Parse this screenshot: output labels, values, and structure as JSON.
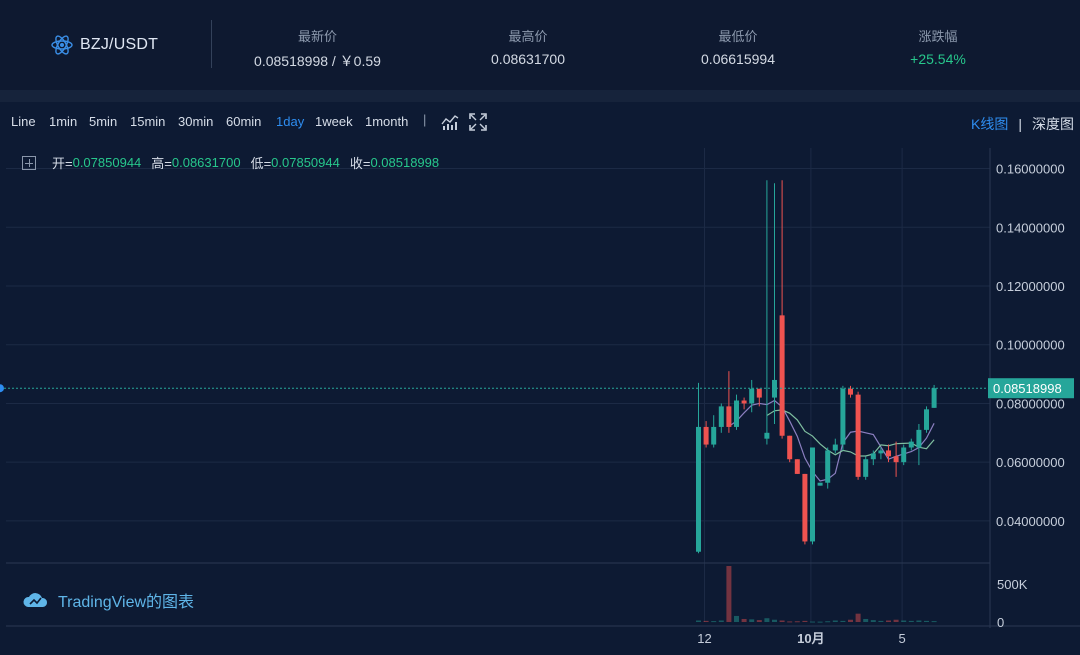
{
  "ticker": {
    "pair": "BZJ/USDT",
    "pair_icon": "atom-icon",
    "stats": [
      {
        "label": "最新价",
        "value": "0.08518998 / ￥0.59"
      },
      {
        "label": "最高价",
        "value": "0.08631700"
      },
      {
        "label": "最低价",
        "value": "0.06615994"
      },
      {
        "label": "涨跌幅",
        "value": "+25.54%"
      }
    ]
  },
  "toolbar": {
    "timeframes": [
      "Line",
      "1min",
      "5min",
      "15min",
      "30min",
      "60min",
      "1day",
      "1week",
      "1month"
    ],
    "active": "1day",
    "separator": "|",
    "indicator_icon": "indicators-icon",
    "fullscreen_icon": "fullscreen-icon",
    "kline_tab": "K线图",
    "tab_separator": "|",
    "depth_tab": "深度图"
  },
  "legend": {
    "open_label": "开=",
    "open": "0.07850944",
    "high_label": "高=",
    "high": "0.08631700",
    "low_label": "低=",
    "low": "0.07850944",
    "close_label": "收=",
    "close": "0.08518998"
  },
  "watermark": "TradingView的图表",
  "colors": {
    "up": "#26a69a",
    "down": "#ef5350",
    "accent": "#2e8df0",
    "bg": "#0d1a33"
  },
  "chart_data": {
    "type": "candlestick",
    "price_axis": [
      "0.16000000",
      "0.14000000",
      "0.12000000",
      "0.10000000",
      "0.08000000",
      "0.06000000",
      "0.04000000"
    ],
    "price_ticks": [
      0.16,
      0.14,
      0.12,
      0.1,
      0.08,
      0.06,
      0.04
    ],
    "ylim": [
      0.026,
      0.167
    ],
    "last_price": 0.08518998,
    "last_price_label": "0.08518998",
    "volume_axis": [
      "500K",
      "0"
    ],
    "volume_ticks": [
      500000,
      0
    ],
    "volume_max": 740000,
    "time_axis": [
      {
        "label": "12",
        "index": 0
      },
      {
        "label": "10月",
        "index": 14
      },
      {
        "label": "5",
        "index": 26
      }
    ],
    "candles": [
      {
        "o": 0.0295,
        "h": 0.087,
        "l": 0.029,
        "c": 0.072,
        "v": 20000
      },
      {
        "o": 0.072,
        "h": 0.074,
        "l": 0.065,
        "c": 0.066,
        "v": 15000
      },
      {
        "o": 0.066,
        "h": 0.076,
        "l": 0.065,
        "c": 0.072,
        "v": 12000
      },
      {
        "o": 0.072,
        "h": 0.08,
        "l": 0.07,
        "c": 0.079,
        "v": 20000
      },
      {
        "o": 0.079,
        "h": 0.091,
        "l": 0.07,
        "c": 0.072,
        "v": 740000
      },
      {
        "o": 0.072,
        "h": 0.083,
        "l": 0.071,
        "c": 0.081,
        "v": 80000
      },
      {
        "o": 0.081,
        "h": 0.082,
        "l": 0.078,
        "c": 0.08,
        "v": 40000
      },
      {
        "o": 0.08,
        "h": 0.088,
        "l": 0.077,
        "c": 0.085,
        "v": 35000
      },
      {
        "o": 0.085,
        "h": 0.085,
        "l": 0.079,
        "c": 0.082,
        "v": 25000
      },
      {
        "o": 0.068,
        "h": 0.156,
        "l": 0.066,
        "c": 0.07,
        "v": 50000
      },
      {
        "o": 0.082,
        "h": 0.155,
        "l": 0.073,
        "c": 0.088,
        "v": 30000
      },
      {
        "o": 0.11,
        "h": 0.156,
        "l": 0.068,
        "c": 0.069,
        "v": 20000
      },
      {
        "o": 0.069,
        "h": 0.069,
        "l": 0.06,
        "c": 0.061,
        "v": 8000
      },
      {
        "o": 0.061,
        "h": 0.061,
        "l": 0.056,
        "c": 0.056,
        "v": 10000
      },
      {
        "o": 0.056,
        "h": 0.056,
        "l": 0.032,
        "c": 0.033,
        "v": 15000
      },
      {
        "o": 0.033,
        "h": 0.064,
        "l": 0.032,
        "c": 0.065,
        "v": 6000
      },
      {
        "o": 0.052,
        "h": 0.053,
        "l": 0.052,
        "c": 0.053,
        "v": 5000
      },
      {
        "o": 0.053,
        "h": 0.065,
        "l": 0.051,
        "c": 0.064,
        "v": 10000
      },
      {
        "o": 0.064,
        "h": 0.068,
        "l": 0.063,
        "c": 0.066,
        "v": 20000
      },
      {
        "o": 0.066,
        "h": 0.086,
        "l": 0.064,
        "c": 0.085,
        "v": 15000
      },
      {
        "o": 0.085,
        "h": 0.086,
        "l": 0.082,
        "c": 0.083,
        "v": 30000
      },
      {
        "o": 0.083,
        "h": 0.084,
        "l": 0.054,
        "c": 0.055,
        "v": 110000
      },
      {
        "o": 0.055,
        "h": 0.062,
        "l": 0.054,
        "c": 0.061,
        "v": 40000
      },
      {
        "o": 0.061,
        "h": 0.064,
        "l": 0.059,
        "c": 0.063,
        "v": 25000
      },
      {
        "o": 0.063,
        "h": 0.065,
        "l": 0.061,
        "c": 0.064,
        "v": 15000
      },
      {
        "o": 0.064,
        "h": 0.066,
        "l": 0.06,
        "c": 0.062,
        "v": 20000
      },
      {
        "o": 0.062,
        "h": 0.067,
        "l": 0.055,
        "c": 0.06,
        "v": 30000
      },
      {
        "o": 0.06,
        "h": 0.066,
        "l": 0.059,
        "c": 0.065,
        "v": 20000
      },
      {
        "o": 0.065,
        "h": 0.068,
        "l": 0.064,
        "c": 0.067,
        "v": 15000
      },
      {
        "o": 0.065,
        "h": 0.073,
        "l": 0.059,
        "c": 0.071,
        "v": 20000
      },
      {
        "o": 0.071,
        "h": 0.079,
        "l": 0.07,
        "c": 0.078,
        "v": 15000
      },
      {
        "o": 0.0785,
        "h": 0.0863,
        "l": 0.0785,
        "c": 0.0852,
        "v": 12000
      }
    ]
  }
}
